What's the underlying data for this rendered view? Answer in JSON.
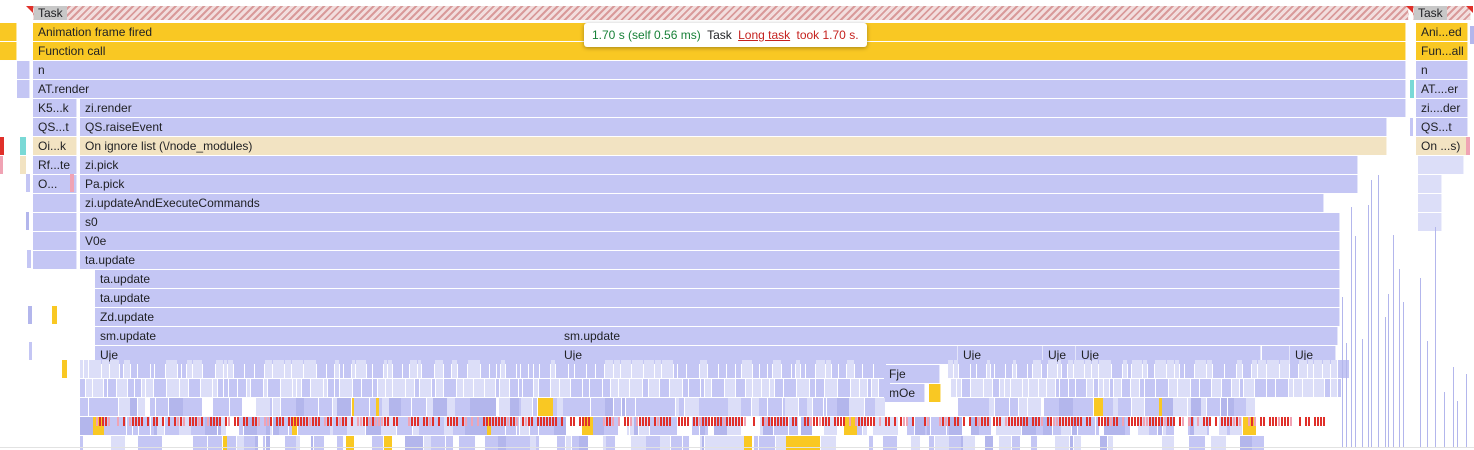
{
  "colors": {
    "yellow": "#f9c823",
    "lavender": "#c4c6f4",
    "lavender_dark": "#b3b6ec",
    "lavender_light": "#dcdef8",
    "ignore": "#f2e3c2",
    "red": "#e0302a",
    "pink": "#f0a3b4",
    "cyan": "#7ad9d6",
    "hatch": "#d99a9a"
  },
  "task_labels": [
    "Task",
    "Task"
  ],
  "tooltip": {
    "duration": "1.70 s (self 0.56 ms)",
    "event": "Task",
    "link": "Long task",
    "suffix": "took 1.70 s."
  },
  "rows": [
    [
      [
        "",
        "#f9c823"
      ],
      [
        "Animation frame fired",
        "#f9c823"
      ],
      [
        "Ani...ed",
        "#f9c823"
      ]
    ],
    [
      [
        "",
        "#f9c823"
      ],
      [
        "Function call",
        "#f9c823"
      ],
      [
        "Fun...all",
        "#f9c823"
      ]
    ],
    [
      [
        "",
        "#c4c6f4"
      ],
      [
        "n",
        "#c4c6f4"
      ],
      [
        "n",
        "#c4c6f4"
      ]
    ],
    [
      [
        "",
        "#c4c6f4"
      ],
      [
        "AT.render",
        "#c4c6f4"
      ],
      [
        "AT....er",
        "#c4c6f4"
      ]
    ],
    [
      [
        "K5...k",
        "#c4c6f4"
      ],
      [
        "zi.render",
        "#c4c6f4"
      ],
      [
        "zi....der",
        "#c4c6f4"
      ]
    ],
    [
      [
        "QS...t",
        "#c4c6f4"
      ],
      [
        "QS.raiseEvent",
        "#c4c6f4"
      ],
      [
        "QS...t",
        "#c4c6f4"
      ]
    ],
    [
      [
        "Oi...k",
        "#f2e3c2"
      ],
      [
        "On ignore list (\\/node_modules)",
        "#f2e3c2"
      ],
      [
        "On ...s)",
        "#f2e3c2"
      ]
    ],
    [
      [
        "Rf...te",
        "#c4c6f4"
      ],
      [
        "zi.pick",
        "#c4c6f4"
      ],
      [
        "",
        "#dcdef8"
      ]
    ],
    [
      [
        "O...",
        "#c4c6f4"
      ],
      [
        "Pa.pick",
        "#c4c6f4"
      ],
      [
        "",
        "#dcdef8"
      ]
    ],
    [
      [
        "",
        "#c4c6f4"
      ],
      [
        "zi.updateAndExecuteCommands",
        "#c4c6f4"
      ],
      [
        "",
        "#dcdef8"
      ]
    ],
    [
      [
        "",
        "#c4c6f4"
      ],
      [
        "s0",
        "#c4c6f4"
      ],
      [
        "",
        "#dcdef8"
      ]
    ],
    [
      [
        "",
        "#c4c6f4"
      ],
      [
        "V0e",
        "#c4c6f4"
      ]
    ],
    [
      [
        "",
        "#c4c6f4"
      ],
      [
        "ta.update",
        "#c4c6f4"
      ]
    ],
    [
      [
        "ta.update",
        "#c4c6f4"
      ]
    ],
    [
      [
        "ta.update",
        "#c4c6f4"
      ]
    ],
    [
      [
        "Zd.update",
        "#c4c6f4"
      ]
    ],
    [
      [
        "sm.update",
        "#c4c6f4"
      ],
      [
        "sm.update",
        "#c4c6f4"
      ]
    ],
    [
      [
        "Uje",
        "#c4c6f4"
      ],
      [
        "Uje",
        "#c4c6f4"
      ],
      [
        "Uje",
        "#c4c6f4"
      ],
      [
        "Uje",
        "#c4c6f4"
      ],
      [
        "Uje",
        "#c4c6f4"
      ],
      [
        "",
        "#c4c6f4"
      ],
      [
        "Uje",
        "#c4c6f4"
      ]
    ],
    [
      [
        "Fje",
        "#c4c6f4"
      ]
    ],
    [
      [
        "mOe",
        "#c4c6f4"
      ],
      [
        "",
        "#f9c823"
      ]
    ]
  ]
}
